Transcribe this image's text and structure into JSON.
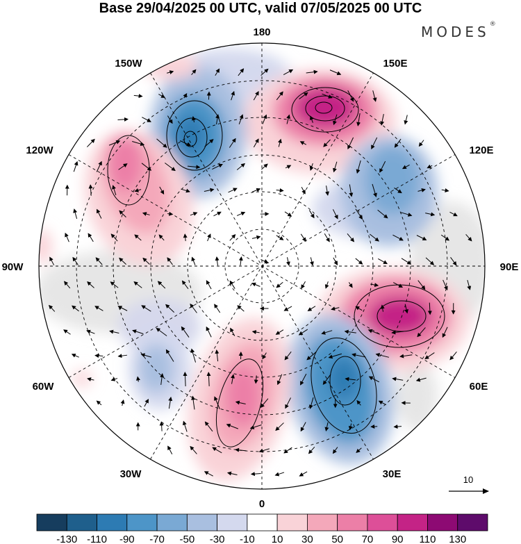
{
  "title": "Base 29/04/2025 00 UTC, valid 07/05/2025 00 UTC",
  "brand": "MODES",
  "brand_mark": "®",
  "longitude_labels": {
    "top": "180",
    "top_left": "150W",
    "top_right": "150E",
    "upper_left": "120W",
    "upper_right": "120E",
    "left": "90W",
    "right": "90E",
    "lower_left": "60W",
    "lower_right": "60E",
    "bottom_left": "30W",
    "bottom_right": "30E",
    "bottom": "0"
  },
  "reference_vector": {
    "label": "10"
  },
  "colorbar": {
    "tick_labels": [
      "-130",
      "-110",
      "-90",
      "-70",
      "-50",
      "-30",
      "-10",
      "10",
      "30",
      "50",
      "70",
      "90",
      "110",
      "130"
    ],
    "colors": [
      "#163d5e",
      "#1f5f8c",
      "#2d7bb3",
      "#4d95c8",
      "#7aa9d4",
      "#a9bfe0",
      "#d4d9ee",
      "#ffffff",
      "#f9d3d8",
      "#f4a8ba",
      "#ec7fa7",
      "#dd4f98",
      "#c42386",
      "#8d0a73",
      "#5e0b6b"
    ],
    "neutral_fill": "#e8e8e8"
  },
  "anomaly_centers": [
    {
      "id": "pos-east-siberia",
      "value": 110,
      "lon": 160,
      "lat": 62
    },
    {
      "id": "neg-alaska-sea",
      "value": -90,
      "lon": -165,
      "lat": 52
    },
    {
      "id": "pos-canada-west",
      "value": 70,
      "lon": -125,
      "lat": 58
    },
    {
      "id": "neg-east-asia",
      "value": -70,
      "lon": 110,
      "lat": 55
    },
    {
      "id": "pos-west-siberia",
      "value": 90,
      "lon": 70,
      "lat": 55
    },
    {
      "id": "neg-europe-east",
      "value": -90,
      "lon": 25,
      "lat": 48
    },
    {
      "id": "pos-europe-west",
      "value": 70,
      "lon": -8,
      "lat": 50
    },
    {
      "id": "neg-atlantic-west",
      "value": -30,
      "lon": -58,
      "lat": 40
    }
  ]
}
